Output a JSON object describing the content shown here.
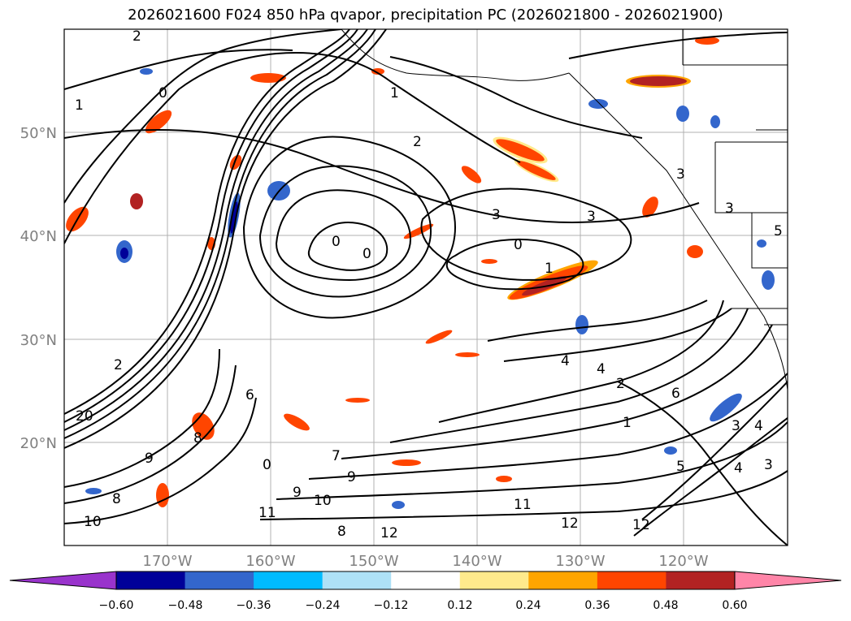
{
  "title": "2026021600 F024 850 hPa qvapor, precipitation PC (2026021800 - 2026021900)",
  "latitude_labels": [
    "50°N",
    "40°N",
    "30°N",
    "20°N"
  ],
  "longitude_labels": [
    "170°W",
    "160°W",
    "150°W",
    "140°W",
    "130°W",
    "120°W"
  ],
  "contour_labels": [
    "2",
    "1",
    "0",
    "2",
    "3",
    "3",
    "0",
    "0",
    "0",
    "1",
    "4",
    "4",
    "4",
    "3",
    "2",
    "1",
    "6",
    "20",
    "9",
    "8",
    "7",
    "9",
    "10",
    "11",
    "12",
    "12",
    "10",
    "11",
    "9",
    "8",
    "5",
    "4",
    "3",
    "12",
    "0",
    "6",
    "8",
    "1",
    "3",
    "3",
    "5",
    "2"
  ],
  "colorbar": {
    "tick_labels": [
      "−0.60",
      "−0.48",
      "−0.36",
      "−0.24",
      "−0.12",
      "0.12",
      "0.24",
      "0.36",
      "0.48",
      "0.60"
    ],
    "colors": [
      "#9933cc",
      "#000099",
      "#3366cc",
      "#00bbff",
      "#aee1f7",
      "#ffffff",
      "#ffea8c",
      "#ffa500",
      "#ff4500",
      "#b22222",
      "#ff85a8"
    ]
  }
}
